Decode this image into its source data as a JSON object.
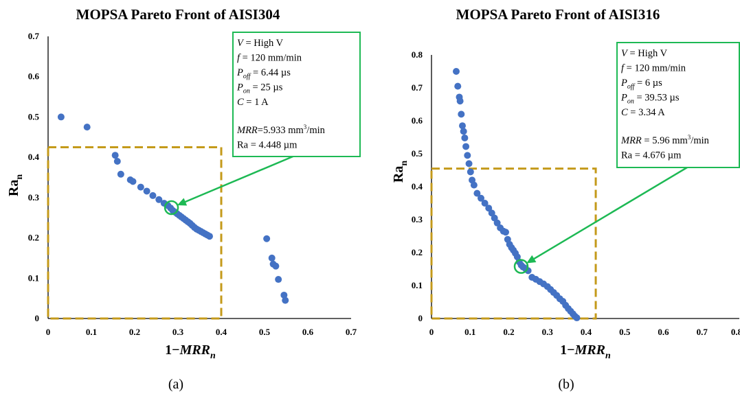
{
  "figure": {
    "panel_a_label": "(a)",
    "panel_b_label": "(b)"
  },
  "chart_data": [
    {
      "type": "scatter",
      "title": "MOPSA Pareto Front of AISI304",
      "xlabel": "1−MRR_n",
      "ylabel": "Ra_n",
      "xlim": [
        0,
        0.7
      ],
      "ylim": [
        0,
        0.7
      ],
      "x_ticks": [
        "0",
        "0.1",
        "0.2",
        "0.3",
        "0.4",
        "0.5",
        "0.6",
        "0.7"
      ],
      "y_ticks": [
        "0",
        "0.1",
        "0.2",
        "0.3",
        "0.4",
        "0.5",
        "0.6",
        "0.7"
      ],
      "grid": false,
      "point_color": "#4472C4",
      "highlight_color": "#1DB954",
      "box_color": "#C49A1A",
      "points": [
        [
          0.03,
          0.5
        ],
        [
          0.09,
          0.475
        ],
        [
          0.155,
          0.405
        ],
        [
          0.16,
          0.39
        ],
        [
          0.168,
          0.358
        ],
        [
          0.19,
          0.344
        ],
        [
          0.196,
          0.34
        ],
        [
          0.214,
          0.326
        ],
        [
          0.228,
          0.316
        ],
        [
          0.242,
          0.305
        ],
        [
          0.256,
          0.295
        ],
        [
          0.268,
          0.286
        ],
        [
          0.277,
          0.28
        ],
        [
          0.283,
          0.274
        ],
        [
          0.288,
          0.268
        ],
        [
          0.293,
          0.264
        ],
        [
          0.298,
          0.26
        ],
        [
          0.303,
          0.256
        ],
        [
          0.308,
          0.252
        ],
        [
          0.313,
          0.248
        ],
        [
          0.318,
          0.244
        ],
        [
          0.323,
          0.24
        ],
        [
          0.328,
          0.236
        ],
        [
          0.333,
          0.231
        ],
        [
          0.338,
          0.226
        ],
        [
          0.343,
          0.222
        ],
        [
          0.348,
          0.219
        ],
        [
          0.353,
          0.216
        ],
        [
          0.358,
          0.213
        ],
        [
          0.363,
          0.21
        ],
        [
          0.368,
          0.207
        ],
        [
          0.373,
          0.204
        ],
        [
          0.505,
          0.198
        ],
        [
          0.517,
          0.15
        ],
        [
          0.52,
          0.135
        ],
        [
          0.526,
          0.13
        ],
        [
          0.532,
          0.097
        ],
        [
          0.545,
          0.058
        ],
        [
          0.548,
          0.045
        ]
      ],
      "highlight": {
        "x": 0.285,
        "y": 0.275
      },
      "box": {
        "x": [
          0,
          0.4
        ],
        "y": [
          0,
          0.425
        ]
      },
      "annotation": [
        {
          "italic": "V",
          "text": " = High V"
        },
        {
          "italic": "f",
          "text": " = 120 mm/min"
        },
        {
          "italic": "P",
          "sub": "off",
          "text": " = 6.44 µs"
        },
        {
          "italic": "P",
          "sub": "on",
          "text": " = 25 µs"
        },
        {
          "italic": "C",
          "text": " = 1 A"
        },
        {
          "italic": "MRR",
          "text": "=5.933 mm",
          "sup": "3",
          "tail": "/min"
        },
        {
          "text": "Ra = 4.448 µm"
        }
      ]
    },
    {
      "type": "scatter",
      "title": "MOPSA Pareto Front of AISI316",
      "xlabel": "1−MRR_n",
      "ylabel": "Ra_n",
      "xlim": [
        0,
        0.8
      ],
      "ylim": [
        0,
        0.8
      ],
      "x_ticks": [
        "0",
        "0.1",
        "0.2",
        "0.3",
        "0.4",
        "0.5",
        "0.6",
        "0.7",
        "0.8"
      ],
      "y_ticks": [
        "0",
        "0.1",
        "0.2",
        "0.3",
        "0.4",
        "0.5",
        "0.6",
        "0.7",
        "0.8"
      ],
      "grid": false,
      "point_color": "#4472C4",
      "highlight_color": "#1DB954",
      "box_color": "#C49A1A",
      "points": [
        [
          0.064,
          0.75
        ],
        [
          0.068,
          0.705
        ],
        [
          0.072,
          0.672
        ],
        [
          0.074,
          0.66
        ],
        [
          0.077,
          0.62
        ],
        [
          0.08,
          0.585
        ],
        [
          0.083,
          0.568
        ],
        [
          0.086,
          0.548
        ],
        [
          0.089,
          0.522
        ],
        [
          0.093,
          0.495
        ],
        [
          0.097,
          0.47
        ],
        [
          0.101,
          0.445
        ],
        [
          0.105,
          0.42
        ],
        [
          0.11,
          0.405
        ],
        [
          0.118,
          0.38
        ],
        [
          0.128,
          0.365
        ],
        [
          0.138,
          0.35
        ],
        [
          0.148,
          0.335
        ],
        [
          0.156,
          0.32
        ],
        [
          0.163,
          0.305
        ],
        [
          0.17,
          0.29
        ],
        [
          0.178,
          0.275
        ],
        [
          0.186,
          0.265
        ],
        [
          0.192,
          0.262
        ],
        [
          0.197,
          0.24
        ],
        [
          0.202,
          0.225
        ],
        [
          0.207,
          0.215
        ],
        [
          0.212,
          0.207
        ],
        [
          0.217,
          0.198
        ],
        [
          0.222,
          0.187
        ],
        [
          0.227,
          0.172
        ],
        [
          0.232,
          0.162
        ],
        [
          0.237,
          0.156
        ],
        [
          0.243,
          0.152
        ],
        [
          0.25,
          0.145
        ],
        [
          0.26,
          0.125
        ],
        [
          0.27,
          0.119
        ],
        [
          0.28,
          0.112
        ],
        [
          0.29,
          0.105
        ],
        [
          0.3,
          0.097
        ],
        [
          0.308,
          0.088
        ],
        [
          0.316,
          0.079
        ],
        [
          0.324,
          0.07
        ],
        [
          0.332,
          0.06
        ],
        [
          0.34,
          0.052
        ],
        [
          0.347,
          0.04
        ],
        [
          0.354,
          0.03
        ],
        [
          0.36,
          0.022
        ],
        [
          0.366,
          0.014
        ],
        [
          0.371,
          0.007
        ],
        [
          0.376,
          0.002
        ]
      ],
      "highlight": {
        "x": 0.232,
        "y": 0.158
      },
      "box": {
        "x": [
          0,
          0.425
        ],
        "y": [
          0,
          0.455
        ]
      },
      "annotation": [
        {
          "italic": "V",
          "text": " = High V"
        },
        {
          "italic": "f",
          "text": " = 120 mm/min"
        },
        {
          "italic": "P",
          "sub": "off",
          "text": " = 6 µs"
        },
        {
          "italic": "P",
          "sub": "on",
          "text": " = 39.53 µs"
        },
        {
          "italic": "C",
          "text": " = 3.34 A"
        },
        {
          "italic": "MRR",
          "text": " = 5.96 mm",
          "sup": "3",
          "tail": "/min"
        },
        {
          "text": "Ra = 4.676 µm"
        }
      ]
    }
  ]
}
